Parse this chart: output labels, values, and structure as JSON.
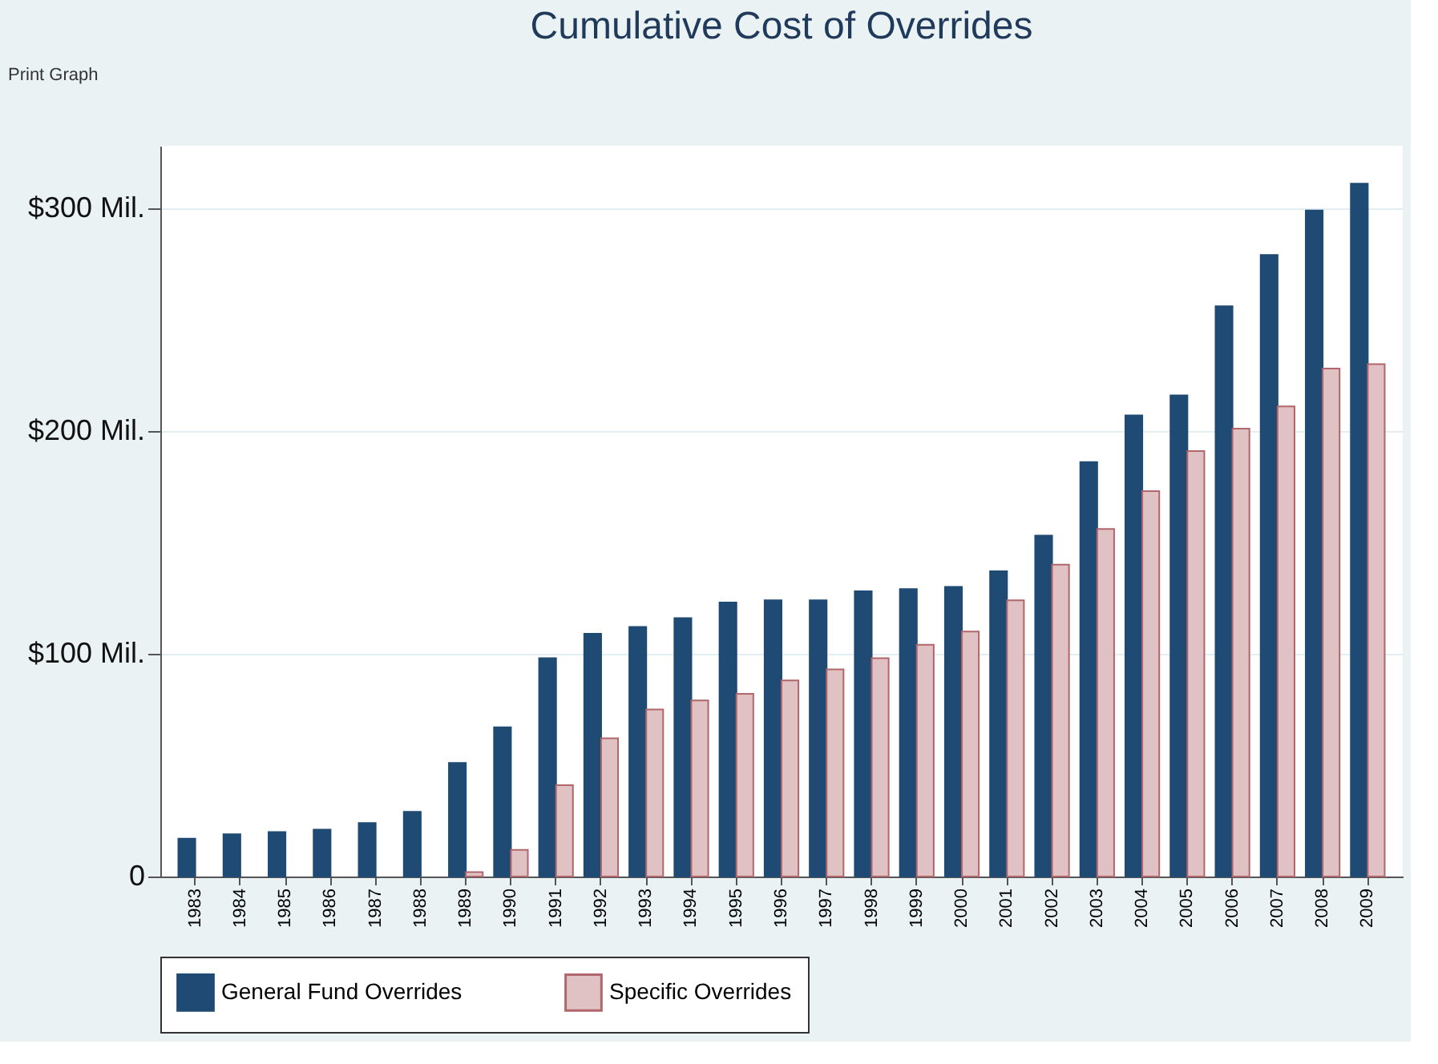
{
  "chart_data": {
    "type": "bar",
    "title": "Cumulative Cost of Overrides",
    "categories": [
      "1983",
      "1984",
      "1985",
      "1986",
      "1987",
      "1988",
      "1989",
      "1990",
      "1991",
      "1992",
      "1993",
      "1994",
      "1995",
      "1996",
      "1997",
      "1998",
      "1999",
      "2000",
      "2001",
      "2002",
      "2003",
      "2004",
      "2005",
      "2006",
      "2007",
      "2008",
      "2009"
    ],
    "series": [
      {
        "name": "General Fund Overrides",
        "color": "#1f4a73",
        "values": [
          17,
          19,
          20,
          21,
          24,
          29,
          51,
          67,
          98,
          109,
          112,
          116,
          123,
          124,
          124,
          128,
          129,
          130,
          137,
          153,
          186,
          207,
          216,
          256,
          279,
          299,
          311
        ]
      },
      {
        "name": "Specific Overrides",
        "color": "#e0c2c4",
        "values": [
          null,
          null,
          null,
          null,
          null,
          null,
          2,
          12,
          41,
          62,
          75,
          79,
          82,
          88,
          93,
          98,
          104,
          110,
          124,
          140,
          156,
          173,
          191,
          201,
          211,
          228,
          230
        ]
      }
    ],
    "ylim": [
      0,
      328
    ],
    "yticks": [
      0,
      {
        "value": 100,
        "label": "$100 Mil."
      },
      {
        "value": 200,
        "label": "$200 Mil."
      },
      {
        "value": 300,
        "label": "$300 Mil."
      }
    ],
    "grid": "y",
    "legend": "bottom",
    "annotations": [
      "Print Graph"
    ]
  }
}
